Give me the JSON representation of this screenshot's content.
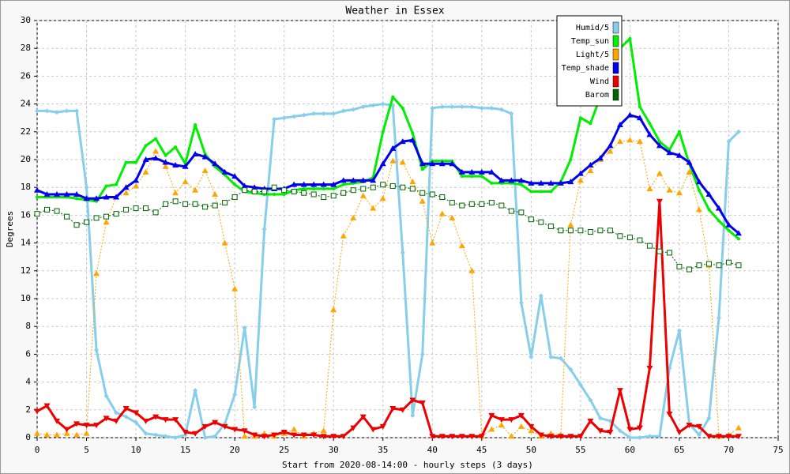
{
  "chart_data": {
    "type": "line",
    "title": "Weather in Essex",
    "xlabel": "Start from 2020-08-14:00 - hourly steps (3 days)",
    "ylabel": "Degrees",
    "x": [
      0,
      1,
      2,
      3,
      4,
      5,
      6,
      7,
      8,
      9,
      10,
      11,
      12,
      13,
      14,
      15,
      16,
      17,
      18,
      19,
      20,
      21,
      22,
      23,
      24,
      25,
      26,
      27,
      28,
      29,
      30,
      31,
      32,
      33,
      34,
      35,
      36,
      37,
      38,
      39,
      40,
      41,
      42,
      43,
      44,
      45,
      46,
      47,
      48,
      49,
      50,
      51,
      52,
      53,
      54,
      55,
      56,
      57,
      58,
      59,
      60,
      61,
      62,
      63,
      64,
      65,
      66,
      67,
      68,
      69,
      70,
      71
    ],
    "xlim": [
      0,
      75
    ],
    "xticks": [
      0,
      5,
      10,
      15,
      20,
      25,
      30,
      35,
      40,
      45,
      50,
      55,
      60,
      65,
      70,
      75
    ],
    "ylim": [
      0,
      30
    ],
    "yticks": [
      0,
      2,
      4,
      6,
      8,
      10,
      12,
      14,
      16,
      18,
      20,
      22,
      24,
      26,
      28,
      30
    ],
    "grid": true,
    "legend": "upper right",
    "series": [
      {
        "name": "Humid/5",
        "color": "#87ceeb",
        "values": [
          23.5,
          23.5,
          23.4,
          23.5,
          23.5,
          18,
          6.3,
          3,
          1.8,
          1.5,
          1.1,
          0.3,
          0.2,
          0.1,
          0,
          0.2,
          3.4,
          0,
          0.1,
          1,
          3.1,
          7.9,
          2.2,
          15,
          22.9,
          23,
          23.1,
          23.2,
          23.3,
          23.3,
          23.3,
          23.5,
          23.6,
          23.8,
          23.9,
          24,
          23.9,
          13.3,
          1.6,
          6,
          23.7,
          23.8,
          23.8,
          23.8,
          23.8,
          23.7,
          23.7,
          23.6,
          23.3,
          9.7,
          5.8,
          10.2,
          5.8,
          5.7,
          4.9,
          3.8,
          2.7,
          1.4,
          1.2,
          0.5,
          0,
          0,
          0.1,
          0.1,
          5,
          7.7,
          1,
          0.2,
          1.4,
          8.6,
          21.3,
          22
        ]
      },
      {
        "name": "Temp_sun",
        "color": "#00ee00",
        "values": [
          17.3,
          17.3,
          17.3,
          17.3,
          17.2,
          17.1,
          17,
          18.1,
          18.2,
          19.8,
          19.8,
          21,
          21.5,
          20.3,
          20.9,
          19.7,
          22.5,
          20.4,
          19.5,
          18.9,
          18.2,
          17.7,
          17.6,
          17.5,
          17.5,
          17.5,
          17.8,
          17.9,
          17.9,
          17.9,
          17.9,
          18.2,
          18.3,
          18.4,
          18.7,
          22,
          24.5,
          23.7,
          21.9,
          19.3,
          19.9,
          19.9,
          19.9,
          18.8,
          18.8,
          18.8,
          18.3,
          18.3,
          18.3,
          18.2,
          17.7,
          17.7,
          17.7,
          18.4,
          20,
          23,
          22.6,
          24.5,
          27,
          28,
          28.7,
          23.8,
          22.6,
          21.3,
          20.7,
          22,
          19.7,
          17.8,
          16.4,
          15.6,
          14.9,
          14.3
        ]
      },
      {
        "name": "Light/5",
        "color": "#ffa500",
        "values": [
          0.3,
          0.2,
          0.2,
          0.3,
          0.2,
          0.3,
          11.8,
          15.5,
          17.3,
          17.6,
          18.1,
          19.1,
          20.6,
          19.5,
          17.6,
          18.4,
          17.8,
          19.2,
          17.5,
          14,
          10.7,
          0.1,
          0.1,
          0.3,
          0.1,
          0.3,
          0.6,
          0.1,
          0.3,
          0.5,
          9.2,
          14.5,
          15.8,
          17.4,
          16.5,
          17.2,
          19.9,
          19.8,
          18.4,
          17,
          14,
          16.1,
          15.8,
          13.8,
          12,
          0.1,
          0.6,
          0.9,
          0.1,
          0.8,
          0.5,
          0.1,
          0.3,
          0.2,
          15.3,
          18.5,
          19.2,
          20,
          20.6,
          21.3,
          21.4,
          21.3,
          17.9,
          19,
          17.8,
          17.6,
          19.1,
          16.4,
          12.4,
          0.1,
          0.2,
          0.7
        ]
      },
      {
        "name": "Temp_shade",
        "color": "#0000ee",
        "values": [
          17.8,
          17.5,
          17.5,
          17.5,
          17.5,
          17.2,
          17.2,
          17.3,
          17.3,
          18,
          18.5,
          20,
          20.1,
          19.8,
          19.6,
          19.5,
          20.4,
          20.2,
          19.7,
          19.1,
          18.8,
          18.1,
          18,
          17.9,
          17.9,
          17.9,
          18.2,
          18.2,
          18.2,
          18.2,
          18.2,
          18.5,
          18.5,
          18.5,
          18.5,
          19.7,
          20.8,
          21.3,
          21.4,
          19.7,
          19.7,
          19.7,
          19.7,
          19.1,
          19.1,
          19.1,
          19.1,
          18.5,
          18.5,
          18.5,
          18.3,
          18.3,
          18.3,
          18.3,
          18.4,
          19,
          19.6,
          20.1,
          21,
          22.5,
          23.2,
          23,
          21.8,
          21,
          20.5,
          20.3,
          19.8,
          18.4,
          17.5,
          16.5,
          15.3,
          14.7
        ]
      },
      {
        "name": "Wind",
        "color": "#ee0000",
        "values": [
          1.9,
          2.3,
          1.2,
          0.6,
          1,
          0.9,
          0.9,
          1.4,
          1.2,
          2.1,
          1.8,
          1.2,
          1.5,
          1.3,
          1.3,
          0.4,
          0.3,
          0.8,
          1.1,
          0.8,
          0.6,
          0.5,
          0.2,
          0.1,
          0.2,
          0.4,
          0.2,
          0.2,
          0.2,
          0.1,
          0.1,
          0.1,
          0.7,
          1.5,
          0.6,
          0.8,
          2.1,
          2,
          2.7,
          2.5,
          0.1,
          0.1,
          0.1,
          0.1,
          0.1,
          0.1,
          1.6,
          1.3,
          1.3,
          1.6,
          0.8,
          0.2,
          0.1,
          0.1,
          0.1,
          0.1,
          1.2,
          0.5,
          0.4,
          3.4,
          0.6,
          0.7,
          5,
          17,
          1.7,
          0.4,
          0.9,
          0.8,
          0.1,
          0.1,
          0.1,
          0.1
        ]
      },
      {
        "name": "Barom",
        "color": "#006400",
        "values": [
          16.1,
          16.4,
          16.3,
          15.9,
          15.3,
          15.5,
          15.8,
          15.9,
          16.1,
          16.4,
          16.5,
          16.5,
          16.2,
          16.8,
          17,
          16.8,
          16.8,
          16.6,
          16.7,
          16.9,
          17.3,
          17.8,
          17.7,
          17.7,
          18,
          17.8,
          17.7,
          17.6,
          17.5,
          17.3,
          17.4,
          17.6,
          17.8,
          17.9,
          18,
          18.2,
          18.1,
          18,
          17.9,
          17.6,
          17.5,
          17.3,
          16.9,
          16.7,
          16.8,
          16.8,
          16.9,
          16.7,
          16.3,
          16.2,
          15.7,
          15.5,
          15.2,
          14.9,
          14.9,
          14.9,
          14.8,
          14.9,
          14.9,
          14.5,
          14.4,
          14.2,
          13.8,
          13.4,
          13.3,
          12.3,
          12.1,
          12.4,
          12.5,
          12.4,
          12.6,
          12.4
        ]
      }
    ]
  }
}
